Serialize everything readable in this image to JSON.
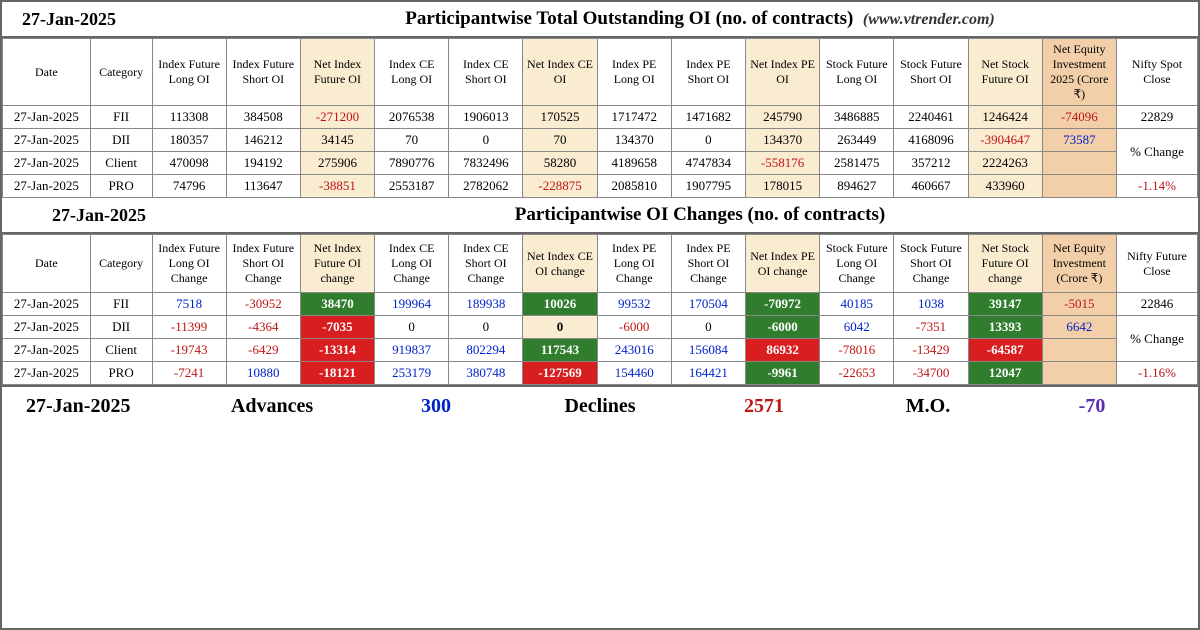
{
  "date": "27-Jan-2025",
  "table1": {
    "title": "Participantwise Total Outstanding OI (no. of contracts)",
    "url": "(www.vtrender.com)",
    "headers": [
      "Date",
      "Category",
      "Index Future Long OI",
      "Index Future Short OI",
      "Net Index Future OI",
      "Index CE Long OI",
      "Index CE Short OI",
      "Net Index CE OI",
      "Index PE Long OI",
      "Index PE Short OI",
      "Net Index PE OI",
      "Stock Future Long OI",
      "Stock Future Short OI",
      "Net Stock Future OI",
      "Net Equity Investment 2025 (Crore ₹)",
      "Nifty Spot Close"
    ],
    "rows": [
      {
        "date": "27-Jan-2025",
        "cat": "FII",
        "c": [
          "113308",
          "384508",
          "-271200",
          "2076538",
          "1906013",
          "170525",
          "1717472",
          "1471682",
          "245790",
          "3486885",
          "2240461",
          "1246424",
          "-74096",
          "22829"
        ]
      },
      {
        "date": "27-Jan-2025",
        "cat": "DII",
        "c": [
          "180357",
          "146212",
          "34145",
          "70",
          "0",
          "70",
          "134370",
          "0",
          "134370",
          "263449",
          "4168096",
          "-3904647",
          "73587",
          ""
        ]
      },
      {
        "date": "27-Jan-2025",
        "cat": "Client",
        "c": [
          "470098",
          "194192",
          "275906",
          "7890776",
          "7832496",
          "58280",
          "4189658",
          "4747834",
          "-558176",
          "2581475",
          "357212",
          "2224263",
          "",
          ""
        ]
      },
      {
        "date": "27-Jan-2025",
        "cat": "PRO",
        "c": [
          "74796",
          "113647",
          "-38851",
          "2553187",
          "2782062",
          "-228875",
          "2085810",
          "1907795",
          "178015",
          "894627",
          "460667",
          "433960",
          "",
          "-1.14%"
        ]
      }
    ],
    "pctLabel": "% Change",
    "niftySpot": "22829",
    "pctChange": "-1.14%"
  },
  "table2": {
    "title": "Participantwise OI Changes (no. of contracts)",
    "headers": [
      "Date",
      "Category",
      "Index Future Long OI Change",
      "Index Future Short OI Change",
      "Net Index Future OI change",
      "Index CE Long OI Change",
      "Index CE Short OI Change",
      "Net Index CE OI change",
      "Index PE Long OI Change",
      "Index PE Short OI Change",
      "Net Index PE OI change",
      "Stock Future Long OI Change",
      "Stock Future Short OI Change",
      "Net Stock Future OI change",
      "Net Equity Investment (Crore ₹)",
      "Nifty Future Close"
    ],
    "rows": [
      {
        "date": "27-Jan-2025",
        "cat": "FII",
        "c": [
          {
            "v": "7518",
            "cls": "pos-blue"
          },
          {
            "v": "-30952",
            "cls": "neg"
          },
          {
            "v": "38470",
            "bg": "green"
          },
          {
            "v": "199964",
            "cls": "pos-blue"
          },
          {
            "v": "189938",
            "cls": "pos-blue"
          },
          {
            "v": "10026",
            "bg": "green"
          },
          {
            "v": "99532",
            "cls": "pos-blue"
          },
          {
            "v": "170504",
            "cls": "pos-blue"
          },
          {
            "v": "-70972",
            "bg": "green"
          },
          {
            "v": "40185",
            "cls": "pos-blue"
          },
          {
            "v": "1038",
            "cls": "pos-blue"
          },
          {
            "v": "39147",
            "bg": "green"
          },
          {
            "v": "-5015",
            "cls": "neg"
          }
        ]
      },
      {
        "date": "27-Jan-2025",
        "cat": "DII",
        "c": [
          {
            "v": "-11399",
            "cls": "neg"
          },
          {
            "v": "-4364",
            "cls": "neg"
          },
          {
            "v": "-7035",
            "bg": "red"
          },
          {
            "v": "0",
            "cls": ""
          },
          {
            "v": "0",
            "cls": ""
          },
          {
            "v": "0",
            "bg": "yellow"
          },
          {
            "v": "-6000",
            "cls": "neg"
          },
          {
            "v": "0",
            "cls": ""
          },
          {
            "v": "-6000",
            "bg": "green"
          },
          {
            "v": "6042",
            "cls": "pos-blue"
          },
          {
            "v": "-7351",
            "cls": "neg"
          },
          {
            "v": "13393",
            "bg": "green"
          },
          {
            "v": "6642",
            "cls": "pos-blue"
          }
        ]
      },
      {
        "date": "27-Jan-2025",
        "cat": "Client",
        "c": [
          {
            "v": "-19743",
            "cls": "neg"
          },
          {
            "v": "-6429",
            "cls": "neg"
          },
          {
            "v": "-13314",
            "bg": "red"
          },
          {
            "v": "919837",
            "cls": "pos-blue"
          },
          {
            "v": "802294",
            "cls": "pos-blue"
          },
          {
            "v": "117543",
            "bg": "green"
          },
          {
            "v": "243016",
            "cls": "pos-blue"
          },
          {
            "v": "156084",
            "cls": "pos-blue"
          },
          {
            "v": "86932",
            "bg": "red"
          },
          {
            "v": "-78016",
            "cls": "neg"
          },
          {
            "v": "-13429",
            "cls": "neg"
          },
          {
            "v": "-64587",
            "bg": "red"
          },
          {
            "v": "",
            "cls": ""
          }
        ]
      },
      {
        "date": "27-Jan-2025",
        "cat": "PRO",
        "c": [
          {
            "v": "-7241",
            "cls": "neg"
          },
          {
            "v": "10880",
            "cls": "pos-blue"
          },
          {
            "v": "-18121",
            "bg": "red"
          },
          {
            "v": "253179",
            "cls": "pos-blue"
          },
          {
            "v": "380748",
            "cls": "pos-blue"
          },
          {
            "v": "-127569",
            "bg": "red"
          },
          {
            "v": "154460",
            "cls": "pos-blue"
          },
          {
            "v": "164421",
            "cls": "pos-blue"
          },
          {
            "v": "-9961",
            "bg": "green"
          },
          {
            "v": "-22653",
            "cls": "neg"
          },
          {
            "v": "-34700",
            "cls": "neg"
          },
          {
            "v": "12047",
            "bg": "green"
          },
          {
            "v": "",
            "cls": ""
          }
        ]
      }
    ],
    "niftyFut": "22846",
    "pctLabel": "% Change",
    "pctChange": "-1.16%"
  },
  "footer": {
    "date": "27-Jan-2025",
    "advLabel": "Advances",
    "adv": "300",
    "decLabel": "Declines",
    "dec": "2571",
    "moLabel": "M.O.",
    "mo": "-70"
  },
  "colors": {
    "neg": "#c01515",
    "posBlue": "#0022cc",
    "green": "#2f7d2d",
    "red": "#d81e1e",
    "beige": "#f9ecd0",
    "peach": "#f2cfa8"
  }
}
